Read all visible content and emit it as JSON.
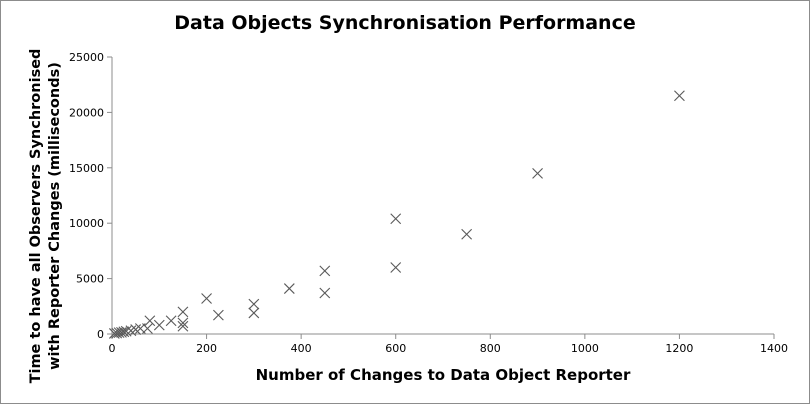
{
  "chart_data": {
    "type": "scatter",
    "title": "Data Objects Synchronisation Performance",
    "xlabel": "Number  of Changes to Data Object Reporter",
    "ylabel_lines": [
      "Time to have all Observers Synchronised",
      "with Reporter Changes (milliseconds)"
    ],
    "xlim": [
      0,
      1400
    ],
    "ylim": [
      0,
      25000
    ],
    "x_ticks": [
      0,
      200,
      400,
      600,
      800,
      1000,
      1200,
      1400
    ],
    "y_ticks": [
      0,
      5000,
      10000,
      15000,
      20000,
      25000
    ],
    "grid": false,
    "legend": "none",
    "marker": "x",
    "marker_color": "#595959",
    "points": [
      {
        "x": 5,
        "y": 50
      },
      {
        "x": 10,
        "y": 80
      },
      {
        "x": 15,
        "y": 120
      },
      {
        "x": 20,
        "y": 150
      },
      {
        "x": 25,
        "y": 200
      },
      {
        "x": 30,
        "y": 250
      },
      {
        "x": 40,
        "y": 300
      },
      {
        "x": 50,
        "y": 400
      },
      {
        "x": 60,
        "y": 500
      },
      {
        "x": 75,
        "y": 500
      },
      {
        "x": 80,
        "y": 1200
      },
      {
        "x": 100,
        "y": 800
      },
      {
        "x": 125,
        "y": 1200
      },
      {
        "x": 150,
        "y": 700
      },
      {
        "x": 150,
        "y": 1000
      },
      {
        "x": 150,
        "y": 2000
      },
      {
        "x": 200,
        "y": 3200
      },
      {
        "x": 225,
        "y": 1700
      },
      {
        "x": 300,
        "y": 1900
      },
      {
        "x": 300,
        "y": 2700
      },
      {
        "x": 375,
        "y": 4100
      },
      {
        "x": 450,
        "y": 3700
      },
      {
        "x": 450,
        "y": 5700
      },
      {
        "x": 600,
        "y": 6000
      },
      {
        "x": 600,
        "y": 10400
      },
      {
        "x": 750,
        "y": 9000
      },
      {
        "x": 900,
        "y": 14500
      },
      {
        "x": 1200,
        "y": 21500
      }
    ]
  }
}
